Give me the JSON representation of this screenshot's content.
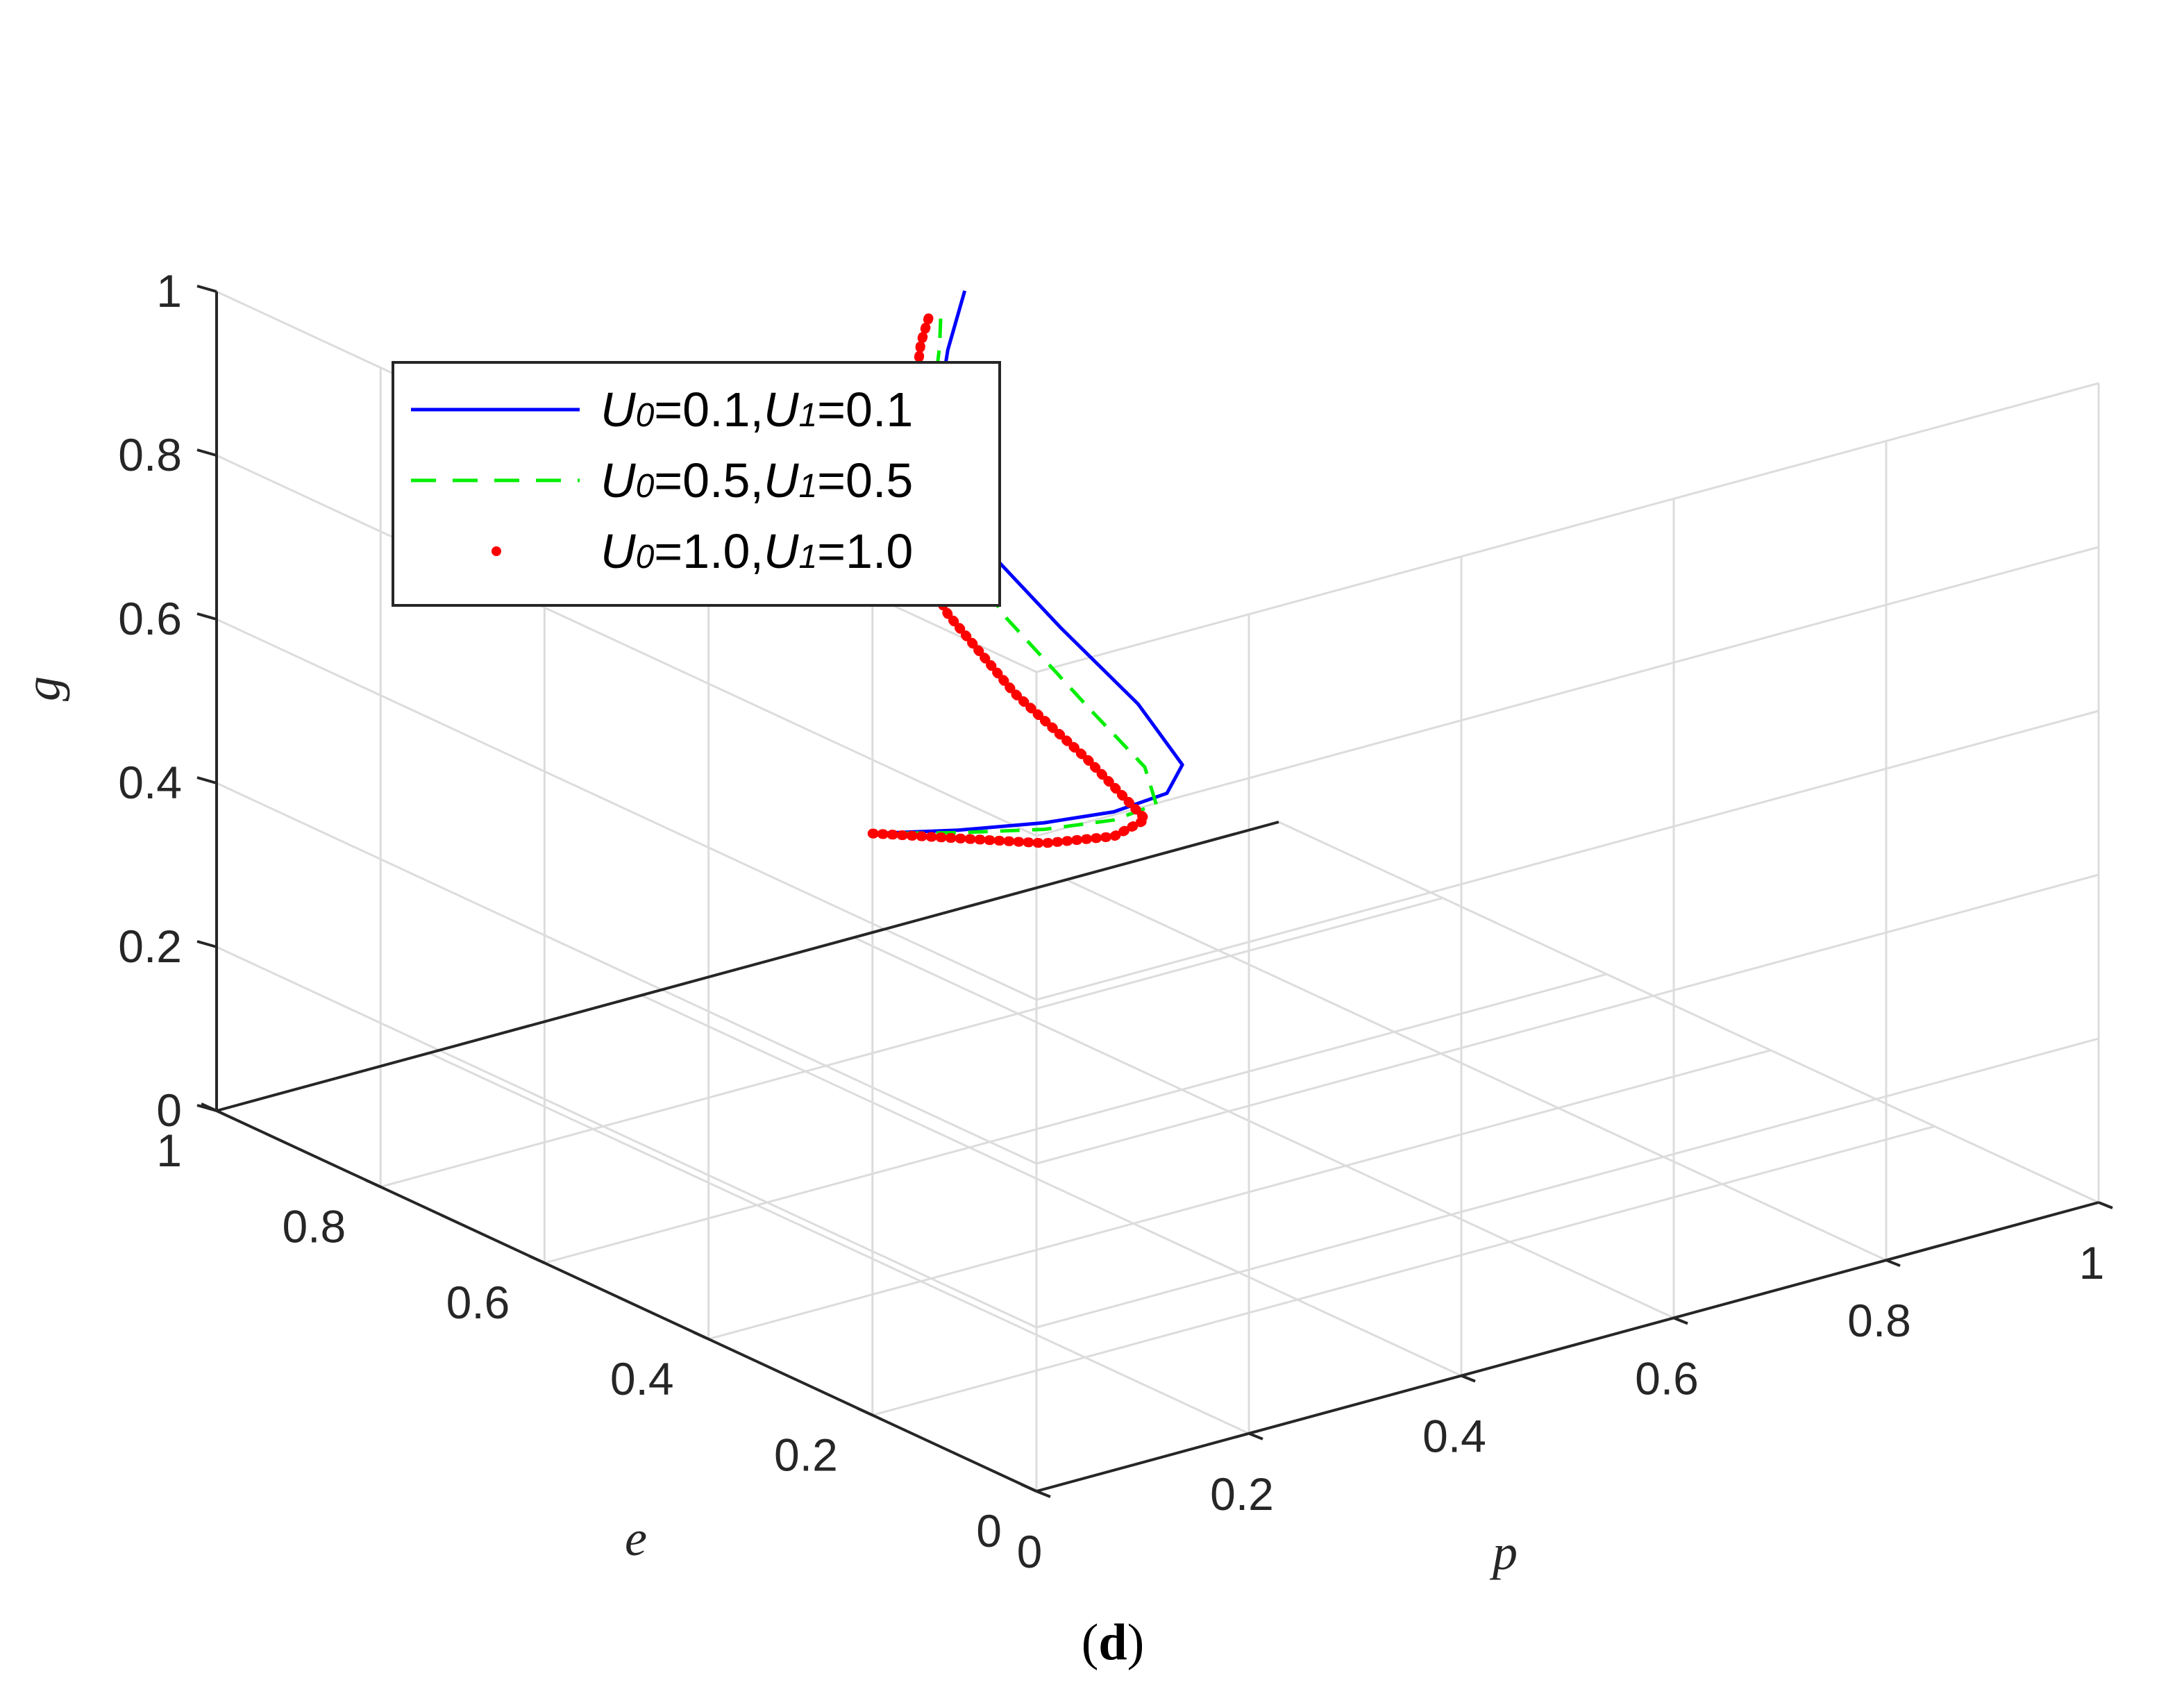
{
  "chart_data": {
    "type": "line3d",
    "xlabel": "p",
    "ylabel": "e",
    "zlabel": "g",
    "xlim": [
      0,
      1
    ],
    "ylim": [
      0,
      1
    ],
    "zlim": [
      0,
      1
    ],
    "x_ticks": [
      {
        "v": 0,
        "label": "0"
      },
      {
        "v": 0.2,
        "label": "0.2"
      },
      {
        "v": 0.4,
        "label": "0.4"
      },
      {
        "v": 0.6,
        "label": "0.6"
      },
      {
        "v": 0.8,
        "label": "0.8"
      },
      {
        "v": 1,
        "label": "1"
      }
    ],
    "y_ticks": [
      {
        "v": 0,
        "label": "0"
      },
      {
        "v": 0.2,
        "label": "0.2"
      },
      {
        "v": 0.4,
        "label": "0.4"
      },
      {
        "v": 0.6,
        "label": "0.6"
      },
      {
        "v": 0.8,
        "label": "0.8"
      },
      {
        "v": 1,
        "label": "1"
      }
    ],
    "z_ticks": [
      {
        "v": 0,
        "label": "0"
      },
      {
        "v": 0.2,
        "label": "0.2"
      },
      {
        "v": 0.4,
        "label": "0.4"
      },
      {
        "v": 0.6,
        "label": "0.6"
      },
      {
        "v": 0.8,
        "label": "0.8"
      },
      {
        "v": 1,
        "label": "1"
      }
    ],
    "grid": true,
    "legend_position": "top-left",
    "panel_label": "(d)",
    "series": [
      {
        "name": "U0=0.1,U1=0.1",
        "legend": {
          "a": "U",
          "a_sub": "0",
          "a_val": "=0.1,",
          "b": "U",
          "b_sub": "1",
          "b_val": "=0.1"
        },
        "color": "#0000ff",
        "style": "solid",
        "points": [
          [
            0.0,
            0.2,
            0.71
          ],
          [
            0.05,
            0.16,
            0.715
          ],
          [
            0.1,
            0.12,
            0.725
          ],
          [
            0.15,
            0.1,
            0.73
          ],
          [
            0.2,
            0.1,
            0.735
          ],
          [
            0.23,
            0.12,
            0.75
          ],
          [
            0.25,
            0.2,
            0.78
          ],
          [
            0.27,
            0.32,
            0.81
          ],
          [
            0.3,
            0.44,
            0.83
          ],
          [
            0.34,
            0.54,
            0.85
          ],
          [
            0.4,
            0.64,
            0.87
          ],
          [
            0.48,
            0.73,
            0.885
          ],
          [
            0.55,
            0.8,
            0.9
          ]
        ]
      },
      {
        "name": "U0=0.5,U1=0.5",
        "legend": {
          "a": "U",
          "a_sub": "0",
          "a_val": "=0.5,",
          "b": "U",
          "b_sub": "1",
          "b_val": "=0.5"
        },
        "color": "#00ee00",
        "style": "dashed",
        "points": [
          [
            0.0,
            0.2,
            0.71
          ],
          [
            0.05,
            0.16,
            0.712
          ],
          [
            0.1,
            0.12,
            0.717
          ],
          [
            0.15,
            0.1,
            0.72
          ],
          [
            0.19,
            0.1,
            0.725
          ],
          [
            0.21,
            0.14,
            0.745
          ],
          [
            0.22,
            0.22,
            0.775
          ],
          [
            0.25,
            0.36,
            0.81
          ],
          [
            0.29,
            0.48,
            0.835
          ],
          [
            0.35,
            0.58,
            0.855
          ],
          [
            0.42,
            0.67,
            0.873
          ],
          [
            0.48,
            0.74,
            0.885
          ],
          [
            0.52,
            0.79,
            0.895
          ]
        ]
      },
      {
        "name": "U0=1.0,U1=1.0",
        "legend": {
          "a": "U",
          "a_sub": "0",
          "a_val": "=1.0,",
          "b": "U",
          "b_sub": "1",
          "b_val": "=1.0"
        },
        "color": "#ff0000",
        "style": "dotted",
        "points": [
          [
            0.0,
            0.2,
            0.71
          ],
          [
            0.05,
            0.16,
            0.705
          ],
          [
            0.1,
            0.12,
            0.7
          ],
          [
            0.15,
            0.1,
            0.7
          ],
          [
            0.18,
            0.1,
            0.71
          ],
          [
            0.18,
            0.17,
            0.75
          ],
          [
            0.18,
            0.26,
            0.79
          ],
          [
            0.21,
            0.38,
            0.82
          ],
          [
            0.26,
            0.5,
            0.845
          ],
          [
            0.33,
            0.6,
            0.865
          ],
          [
            0.41,
            0.68,
            0.877
          ],
          [
            0.47,
            0.75,
            0.887
          ],
          [
            0.51,
            0.79,
            0.893
          ]
        ]
      }
    ]
  }
}
